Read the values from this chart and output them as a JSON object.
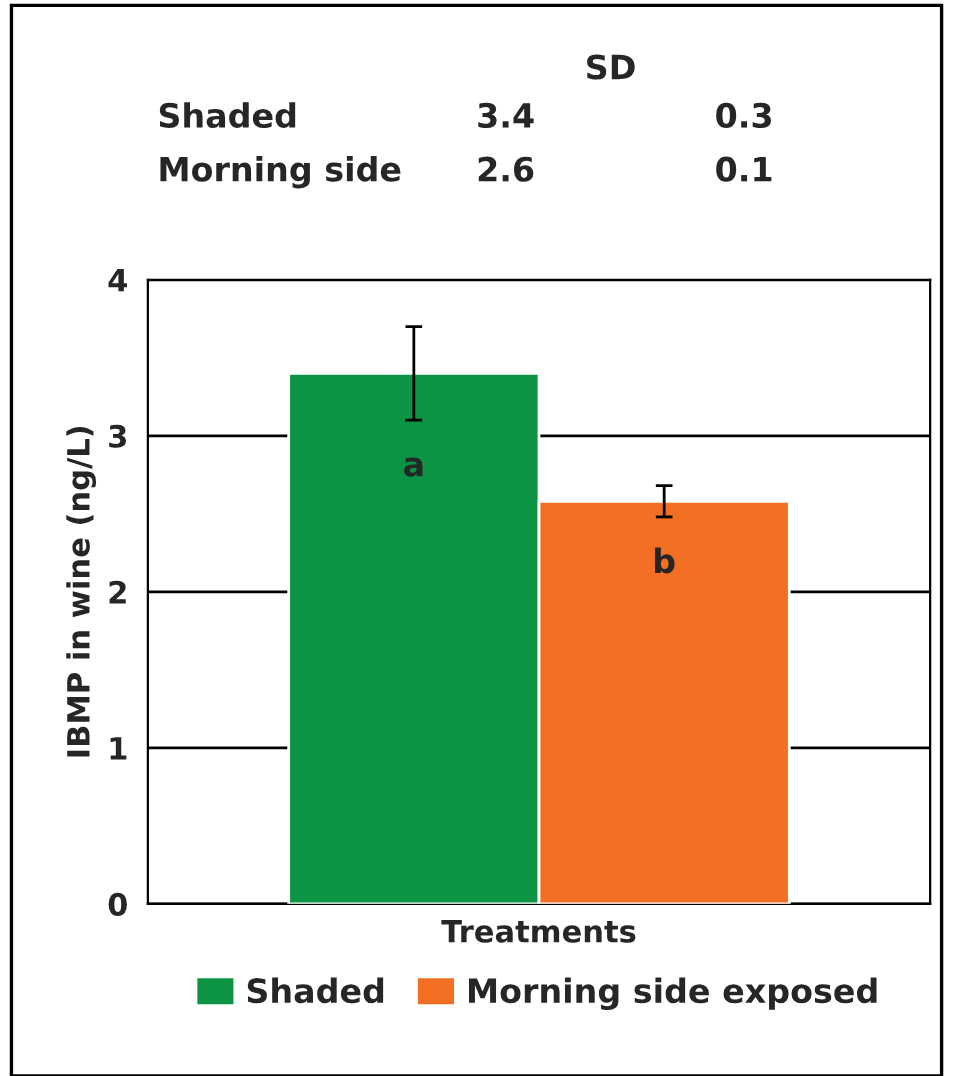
{
  "chart_data": {
    "type": "bar",
    "xlabel": "Treatments",
    "ylabel": "IBMP in wine (ng/L)",
    "categories": [
      null
    ],
    "series": [
      {
        "name": "Shaded",
        "color": "#0c9444",
        "values": [
          3.4
        ],
        "errors": [
          0.3
        ]
      },
      {
        "name": "Morning side exposed",
        "color": "#f36f24",
        "values": [
          2.58
        ],
        "errors": [
          0.1
        ]
      }
    ],
    "ylim": [
      0,
      4
    ],
    "yticks": [
      0,
      1,
      2,
      3,
      4
    ],
    "grid": "y",
    "legend": "bottom",
    "annotations": [
      "SD",
      "Shaded",
      "3.4",
      "0.3",
      "Morning side",
      "2.6",
      "0.1",
      "a",
      "b"
    ]
  }
}
